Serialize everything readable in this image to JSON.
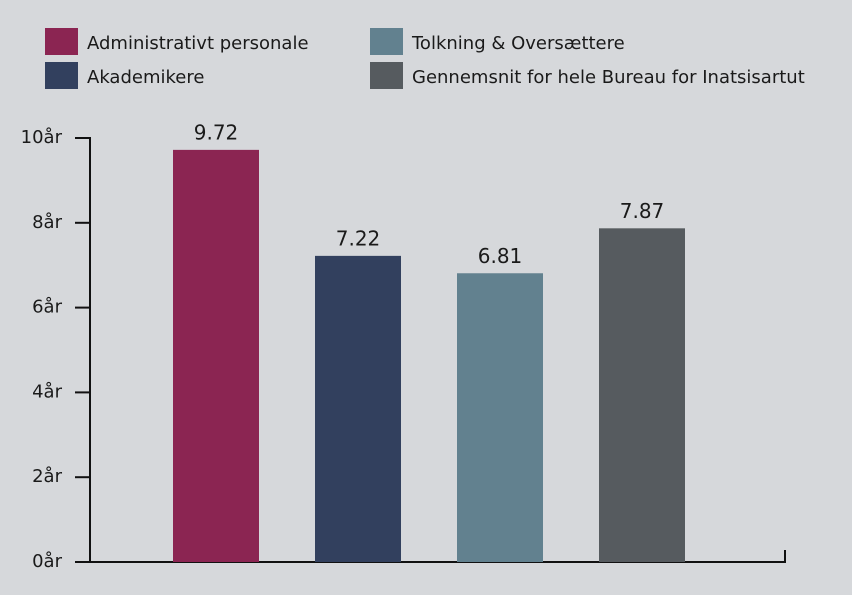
{
  "chart_data": {
    "type": "bar",
    "categories": [
      null
    ],
    "series": [
      {
        "name": "Administrativt personale",
        "color": "#8b2552",
        "values": [
          9.72
        ]
      },
      {
        "name": "Akademikere",
        "color": "#32405e",
        "values": [
          7.22
        ]
      },
      {
        "name": "Tolkning & Oversættere",
        "color": "#62818f",
        "values": [
          6.81
        ]
      },
      {
        "name": "Gennemsnit for hele Bureau for Inatsisartut",
        "color": "#565b5f",
        "values": [
          7.87
        ]
      }
    ],
    "ylim": [
      0,
      10
    ],
    "yticks": [
      {
        "value": 0,
        "label": "0år"
      },
      {
        "value": 2,
        "label": "2år"
      },
      {
        "value": 4,
        "label": "4år"
      },
      {
        "value": 6,
        "label": "6år"
      },
      {
        "value": 8,
        "label": "8år"
      },
      {
        "value": 10,
        "label": "10år"
      }
    ],
    "legend": "top"
  }
}
